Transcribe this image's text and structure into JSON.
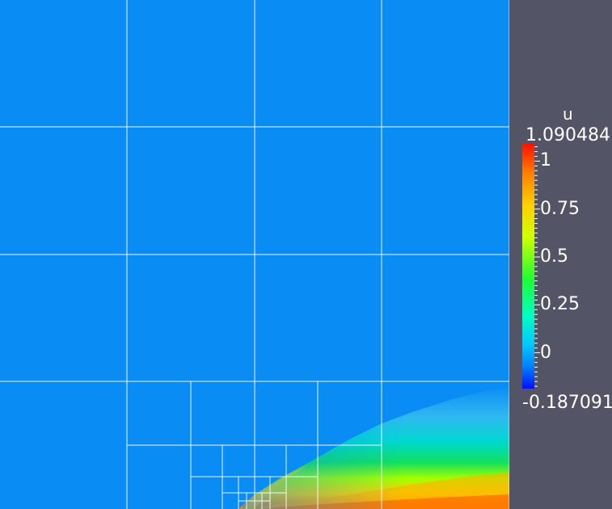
{
  "legend": {
    "title": "u",
    "max_label": "1.090484",
    "min_label": "-0.187091",
    "range": [
      -0.187091,
      1.090484
    ],
    "ticks": [
      {
        "value": 1,
        "label": "1"
      },
      {
        "value": 0.75,
        "label": "0.75"
      },
      {
        "value": 0.5,
        "label": "0.5"
      },
      {
        "value": 0.25,
        "label": "0.25"
      },
      {
        "value": 0,
        "label": "0"
      }
    ],
    "colormap": [
      "#0010ff",
      "#0090ff",
      "#00ffe0",
      "#20ff30",
      "#e0ff00",
      "#ffb000",
      "#ff1000"
    ]
  },
  "colors": {
    "background": "#535566",
    "mesh_lines": "#ffffff",
    "field_base": "#0a8cf5"
  }
}
